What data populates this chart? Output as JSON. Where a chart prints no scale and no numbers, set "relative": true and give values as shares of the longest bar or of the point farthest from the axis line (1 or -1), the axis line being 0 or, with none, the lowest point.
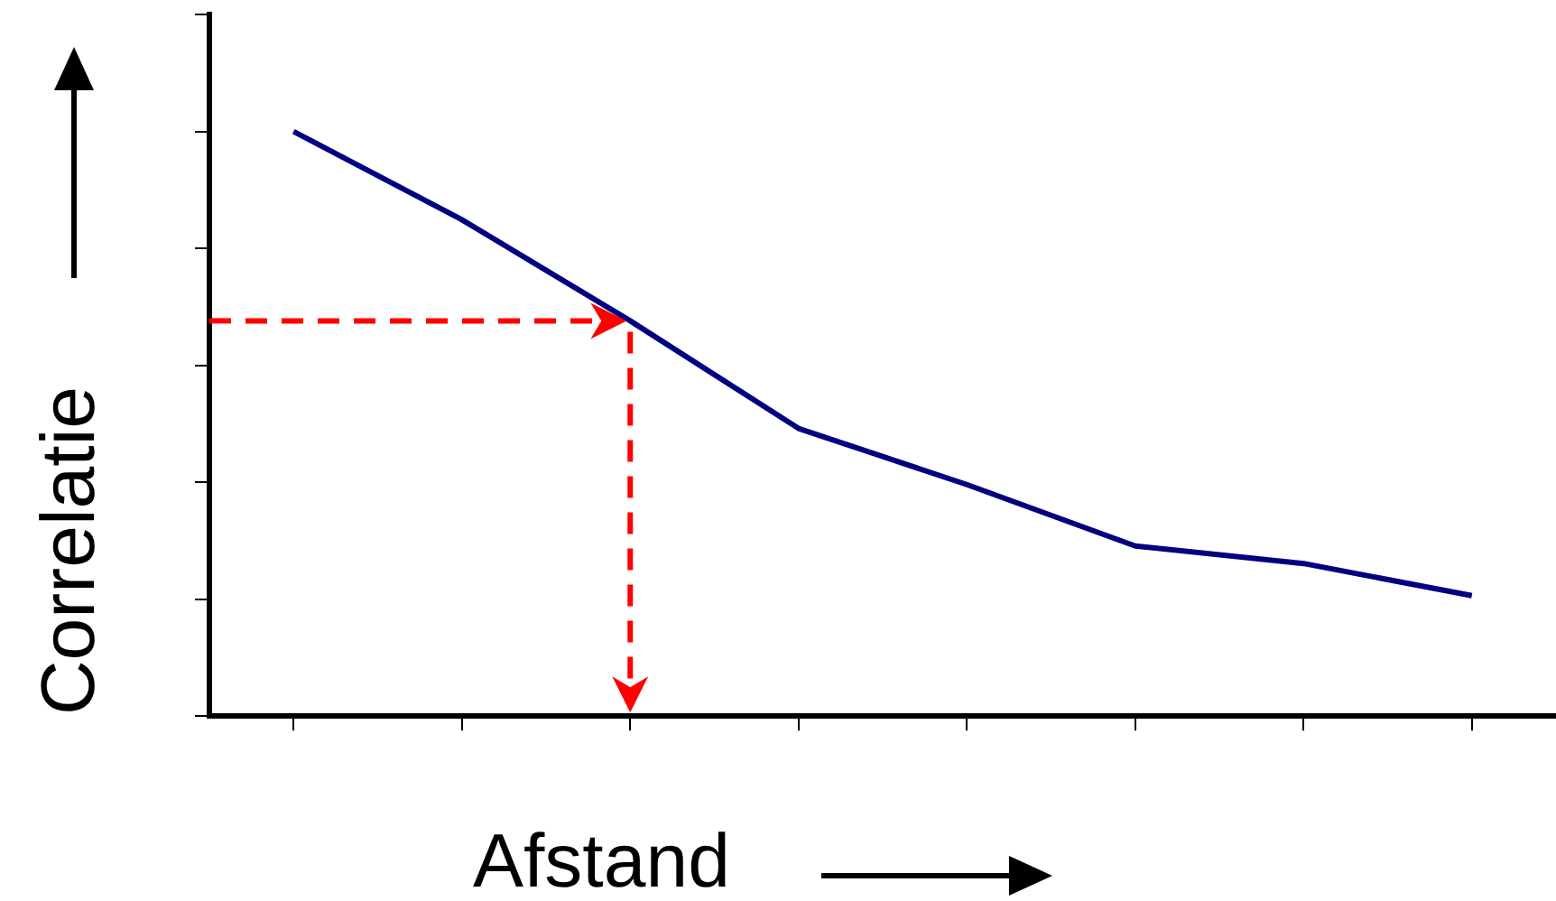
{
  "chart_data": {
    "type": "line",
    "relative": true,
    "xlabel": "Afstand",
    "ylabel": "Correlatie",
    "categories": [
      null,
      null,
      null,
      null,
      null,
      null,
      null,
      null
    ],
    "grid": false,
    "legend": false,
    "marker": "none",
    "line_style": "solid",
    "series": [
      {
        "color": "#000080",
        "values": [
          1,
          0.849,
          0.676,
          0.492,
          0.396,
          0.291,
          0.261,
          0.206
        ]
      }
    ]
  }
}
